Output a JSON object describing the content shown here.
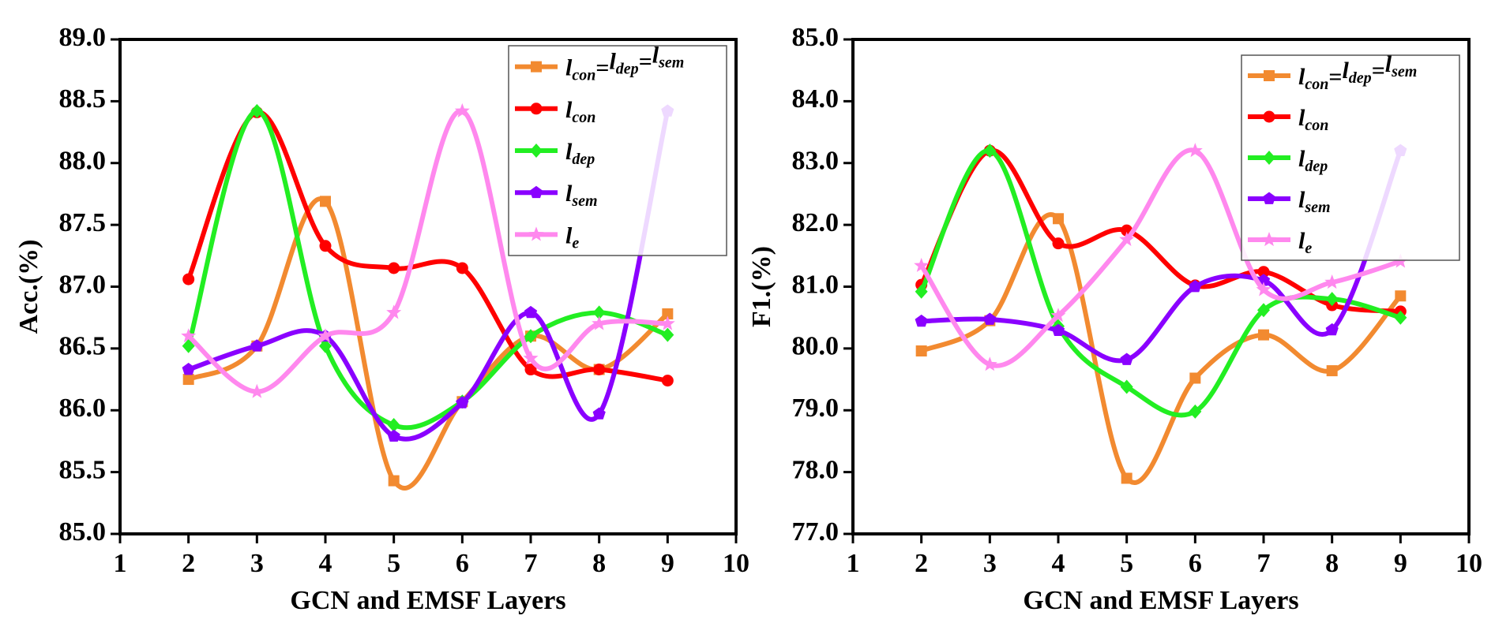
{
  "chart_data": [
    {
      "type": "line",
      "xlabel": "GCN and EMSF Layers",
      "ylabel": "Acc.(%)",
      "xlim": [
        1,
        10
      ],
      "ylim": [
        85.0,
        89.0
      ],
      "xticks": [
        "1",
        "2",
        "3",
        "4",
        "5",
        "6",
        "7",
        "8",
        "9",
        "10"
      ],
      "yticks": [
        "85.0",
        "85.5",
        "86.0",
        "86.5",
        "87.0",
        "87.5",
        "88.0",
        "88.5",
        "89.0"
      ],
      "x": [
        2,
        3,
        4,
        5,
        6,
        7,
        8,
        9
      ],
      "grid": false,
      "legend": "top-right",
      "series": [
        {
          "name": "l_con=l_dep=l_sem",
          "color": "#F28A30",
          "marker": "square",
          "values": [
            86.25,
            86.52,
            87.69,
            85.43,
            86.07,
            86.6,
            86.33,
            86.78
          ]
        },
        {
          "name": "l_con",
          "color": "#FF0000",
          "marker": "circle",
          "values": [
            87.06,
            88.41,
            87.33,
            87.15,
            87.15,
            86.33,
            86.33,
            86.24
          ]
        },
        {
          "name": "l_dep",
          "color": "#22EE22",
          "marker": "diamond",
          "values": [
            86.52,
            88.42,
            86.52,
            85.88,
            86.07,
            86.6,
            86.79,
            86.61
          ]
        },
        {
          "name": "l_sem",
          "color": "#8A00FF",
          "marker": "pentagon",
          "values": [
            86.33,
            86.52,
            86.6,
            85.79,
            86.06,
            86.79,
            85.97,
            88.42
          ]
        },
        {
          "name": "l_e",
          "color": "#FF88EE",
          "marker": "star",
          "values": [
            86.6,
            86.15,
            86.6,
            86.79,
            88.42,
            86.42,
            86.7,
            86.7
          ]
        }
      ]
    },
    {
      "type": "line",
      "xlabel": "GCN and EMSF Layers",
      "ylabel": "F1.(%)",
      "xlim": [
        1,
        10
      ],
      "ylim": [
        77.0,
        85.0
      ],
      "xticks": [
        "1",
        "2",
        "3",
        "4",
        "5",
        "6",
        "7",
        "8",
        "9",
        "10"
      ],
      "yticks": [
        "77.0",
        "78.0",
        "79.0",
        "80.0",
        "81.0",
        "82.0",
        "83.0",
        "84.0",
        "85.0"
      ],
      "x": [
        2,
        3,
        4,
        5,
        6,
        7,
        8,
        9
      ],
      "grid": false,
      "legend": "top-right",
      "series": [
        {
          "name": "l_con=l_dep=l_sem",
          "color": "#F28A30",
          "marker": "square",
          "values": [
            79.96,
            80.45,
            82.1,
            77.9,
            79.52,
            80.22,
            79.64,
            80.85
          ]
        },
        {
          "name": "l_con",
          "color": "#FF0000",
          "marker": "circle",
          "values": [
            81.03,
            83.2,
            81.7,
            81.91,
            81.02,
            81.24,
            80.7,
            80.6
          ]
        },
        {
          "name": "l_dep",
          "color": "#22EE22",
          "marker": "diamond",
          "values": [
            80.92,
            83.2,
            80.36,
            79.38,
            78.98,
            80.62,
            80.8,
            80.5
          ]
        },
        {
          "name": "l_sem",
          "color": "#8A00FF",
          "marker": "pentagon",
          "values": [
            80.44,
            80.47,
            80.29,
            79.82,
            81.0,
            81.1,
            80.3,
            83.2
          ]
        },
        {
          "name": "l_e",
          "color": "#FF88EE",
          "marker": "star",
          "values": [
            81.34,
            79.74,
            80.53,
            81.76,
            83.2,
            80.95,
            81.07,
            81.41
          ]
        }
      ]
    }
  ]
}
